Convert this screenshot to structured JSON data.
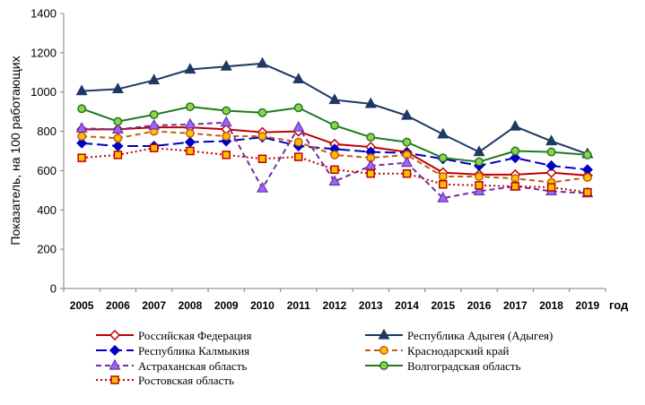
{
  "chart_data": {
    "type": "line",
    "title": "",
    "xlabel": "год",
    "ylabel": "Показатель, на 100 работающих",
    "ylim": [
      0,
      1400
    ],
    "yticks": [
      "0",
      "200",
      "400",
      "600",
      "800",
      "1000",
      "1200",
      "1400"
    ],
    "categories": [
      "2005",
      "2006",
      "2007",
      "2008",
      "2009",
      "2010",
      "2011",
      "2012",
      "2013",
      "2014",
      "2015",
      "2016",
      "2017",
      "2018",
      "2019"
    ],
    "grid": false,
    "legend_position": "bottom",
    "series": [
      {
        "name": "Российская Федерация",
        "color": "#C00000",
        "dash": "solid",
        "marker": "diamond",
        "values": [
          810,
          810,
          820,
          820,
          810,
          795,
          800,
          735,
          720,
          695,
          590,
          580,
          580,
          590,
          575
        ]
      },
      {
        "name": "Республика Адыгея (Адыгея)",
        "color": "#1F3864",
        "dash": "solid",
        "marker": "triangle",
        "values": [
          1005,
          1015,
          1060,
          1115,
          1130,
          1145,
          1065,
          960,
          940,
          880,
          785,
          695,
          825,
          750,
          685
        ]
      },
      {
        "name": "Республика Калмыкия",
        "color": "#0000C0",
        "dash": "longdash",
        "marker": "diamond",
        "values": [
          740,
          725,
          725,
          745,
          750,
          770,
          725,
          710,
          695,
          690,
          660,
          625,
          665,
          625,
          605
        ]
      },
      {
        "name": "Краснодарский край",
        "color": "#C55A11",
        "dash": "dash",
        "marker": "circle",
        "values": [
          775,
          765,
          800,
          790,
          775,
          775,
          745,
          680,
          665,
          680,
          570,
          570,
          560,
          540,
          565
        ]
      },
      {
        "name": "Астраханская область",
        "color": "#7030A0",
        "dash": "dash",
        "marker": "triangle",
        "values": [
          815,
          810,
          830,
          835,
          845,
          510,
          820,
          545,
          625,
          640,
          460,
          495,
          520,
          495,
          485
        ]
      },
      {
        "name": "Волгоградская область",
        "color": "#1E7B1E",
        "dash": "solid",
        "marker": "circle",
        "values": [
          915,
          850,
          885,
          925,
          905,
          895,
          920,
          830,
          770,
          745,
          665,
          645,
          700,
          695,
          680
        ]
      },
      {
        "name": "Ростовская область",
        "color": "#C00000",
        "dash": "dot",
        "marker": "square",
        "values": [
          665,
          680,
          715,
          700,
          680,
          660,
          670,
          605,
          585,
          585,
          530,
          525,
          520,
          515,
          490
        ]
      }
    ],
    "colors": {
      "axis": "#7F7F7F",
      "text": "#000000",
      "marker_fill_diamond_rf": "#ffffff",
      "marker_fill_adygea": "#1F3864",
      "marker_fill_kalmykia": "#0000C0",
      "marker_fill_krasnodar": "#FFC000",
      "marker_fill_astrakhan": "#9966FF",
      "marker_fill_volgograd": "#92D050",
      "marker_fill_rostov": "#FFC000"
    }
  }
}
